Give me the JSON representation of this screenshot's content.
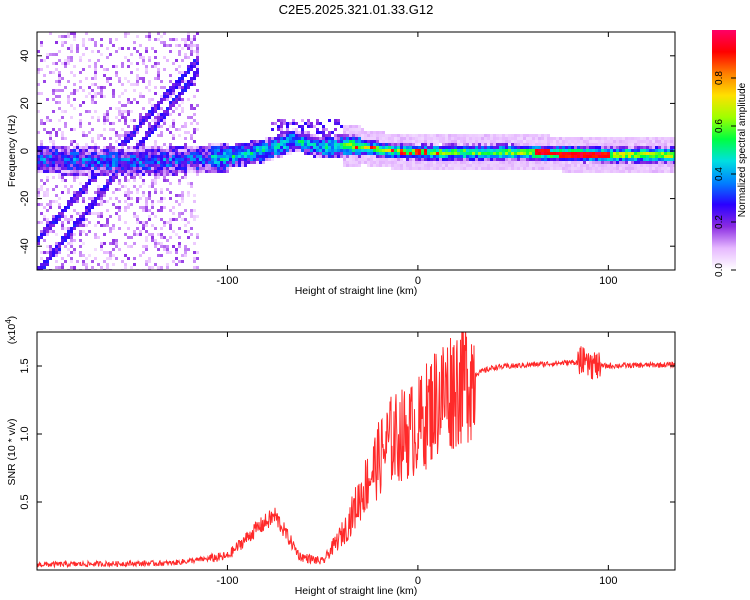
{
  "title": "C2E5.2025.321.01.33.G12",
  "chart_data": [
    {
      "type": "heatmap",
      "name": "spectrogram",
      "xlabel": "Height of straight line (km)",
      "ylabel": "Frequency (Hz)",
      "xlim": [
        -200,
        135
      ],
      "ylim": [
        -50,
        50
      ],
      "xticks": [
        -100,
        0,
        100
      ],
      "yticks": [
        -40,
        -20,
        0,
        20,
        40
      ],
      "colorbar": {
        "label": "Normalized spectral amplitude",
        "range": [
          0,
          1
        ],
        "ticks": [
          "0.0",
          "0.2",
          "0.4",
          "0.6",
          "0.8"
        ],
        "colors": [
          "#ffffff",
          "#e6b8ff",
          "#8a2be2",
          "#2a00ff",
          "#0080ff",
          "#00e0e0",
          "#00ff40",
          "#a0ff00",
          "#ffe000",
          "#ff7f00",
          "#ff0000",
          "#ff0066"
        ]
      },
      "ridge": [
        {
          "x": -200,
          "f": -3
        },
        {
          "x": -150,
          "f": -4
        },
        {
          "x": -120,
          "f": -3
        },
        {
          "x": -100,
          "f": -2
        },
        {
          "x": -80,
          "f": 1
        },
        {
          "x": -65,
          "f": 5
        },
        {
          "x": -50,
          "f": 2
        },
        {
          "x": -35,
          "f": 3
        },
        {
          "x": -20,
          "f": 1
        },
        {
          "x": 0,
          "f": 0
        },
        {
          "x": 50,
          "f": 0
        },
        {
          "x": 100,
          "f": -1
        },
        {
          "x": 135,
          "f": -1
        }
      ]
    },
    {
      "type": "line",
      "name": "snr",
      "xlabel": "Height of straight line (km)",
      "ylabel": "SNR (10 * v/v)",
      "y_multiplier": "(x10",
      "y_multiplier_exp": "4",
      "y_multiplier_close": ")",
      "xlim": [
        -200,
        135
      ],
      "ylim": [
        0,
        1.75
      ],
      "xticks": [
        -100,
        0,
        100
      ],
      "yticks": [
        "0.5",
        "1.0",
        "1.5"
      ],
      "color": "#ff2a2a",
      "series_key_points": [
        {
          "x": -200,
          "y": 0.04
        },
        {
          "x": -130,
          "y": 0.05
        },
        {
          "x": -100,
          "y": 0.1
        },
        {
          "x": -85,
          "y": 0.3
        },
        {
          "x": -75,
          "y": 0.4
        },
        {
          "x": -62,
          "y": 0.1
        },
        {
          "x": -50,
          "y": 0.06
        },
        {
          "x": -38,
          "y": 0.3
        },
        {
          "x": -25,
          "y": 0.7
        },
        {
          "x": -15,
          "y": 0.95
        },
        {
          "x": 0,
          "y": 1.05
        },
        {
          "x": 10,
          "y": 1.25
        },
        {
          "x": 25,
          "y": 1.42
        },
        {
          "x": 40,
          "y": 1.49
        },
        {
          "x": 60,
          "y": 1.51
        },
        {
          "x": 85,
          "y": 1.53
        },
        {
          "x": 95,
          "y": 1.5
        },
        {
          "x": 135,
          "y": 1.51
        }
      ]
    }
  ]
}
